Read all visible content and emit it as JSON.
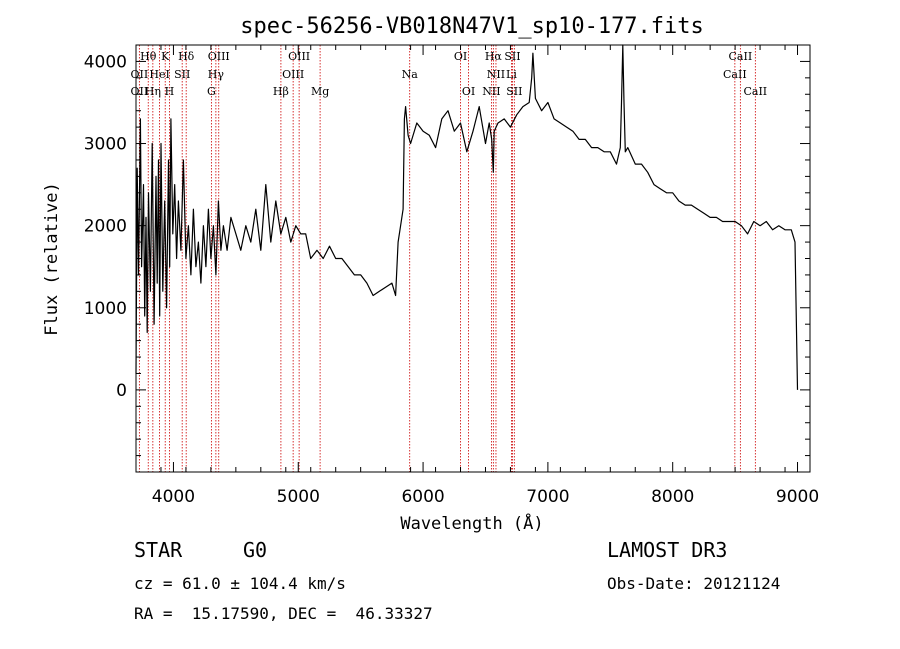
{
  "chart_data": {
    "type": "line",
    "title": "spec-56256-VB018N47V1_sp10-177.fits",
    "xlabel": "Wavelength (Å)",
    "ylabel": "Flux (relative)",
    "xlim": [
      3700,
      9100
    ],
    "ylim": [
      -1000,
      4200
    ],
    "x_ticks": [
      4000,
      5000,
      6000,
      7000,
      8000,
      9000
    ],
    "y_ticks": [
      0,
      1000,
      2000,
      3000,
      4000
    ],
    "series": [
      {
        "name": "flux",
        "x": [
          3700,
          3710,
          3720,
          3735,
          3745,
          3760,
          3770,
          3780,
          3790,
          3800,
          3815,
          3830,
          3845,
          3860,
          3870,
          3880,
          3890,
          3900,
          3915,
          3930,
          3945,
          3960,
          3970,
          3980,
          3995,
          4010,
          4025,
          4040,
          4060,
          4080,
          4100,
          4120,
          4140,
          4160,
          4180,
          4200,
          4220,
          4240,
          4260,
          4280,
          4300,
          4320,
          4340,
          4360,
          4380,
          4400,
          4430,
          4460,
          4500,
          4540,
          4580,
          4620,
          4660,
          4700,
          4740,
          4780,
          4820,
          4860,
          4900,
          4940,
          4980,
          5020,
          5060,
          5100,
          5150,
          5200,
          5250,
          5300,
          5350,
          5400,
          5450,
          5500,
          5550,
          5600,
          5650,
          5700,
          5750,
          5780,
          5800,
          5820,
          5840,
          5850,
          5860,
          5880,
          5900,
          5950,
          6000,
          6050,
          6100,
          6150,
          6200,
          6250,
          6300,
          6350,
          6400,
          6450,
          6500,
          6530,
          6550,
          6563,
          6570,
          6600,
          6650,
          6700,
          6750,
          6800,
          6850,
          6870,
          6880,
          6900,
          6950,
          7000,
          7050,
          7100,
          7150,
          7200,
          7250,
          7300,
          7350,
          7400,
          7450,
          7500,
          7550,
          7580,
          7590,
          7600,
          7610,
          7620,
          7640,
          7700,
          7750,
          7800,
          7850,
          7900,
          7950,
          8000,
          8050,
          8100,
          8150,
          8200,
          8250,
          8300,
          8350,
          8400,
          8450,
          8500,
          8550,
          8600,
          8650,
          8700,
          8750,
          8800,
          8850,
          8900,
          8950,
          8980,
          9000
        ],
        "values": [
          200,
          2700,
          1400,
          3300,
          1500,
          2500,
          900,
          2100,
          700,
          2400,
          1200,
          3000,
          800,
          2600,
          1300,
          2800,
          900,
          3000,
          1200,
          2300,
          1000,
          2800,
          1500,
          3300,
          1900,
          2500,
          1600,
          2300,
          1700,
          2800,
          1600,
          2000,
          1400,
          2200,
          1500,
          1800,
          1300,
          2000,
          1500,
          2200,
          1600,
          2000,
          1400,
          2300,
          1700,
          2000,
          1700,
          2100,
          1900,
          1700,
          2000,
          1800,
          2200,
          1700,
          2500,
          1800,
          2300,
          1900,
          2100,
          1800,
          2000,
          1900,
          1900,
          1600,
          1700,
          1600,
          1750,
          1600,
          1600,
          1500,
          1400,
          1400,
          1300,
          1150,
          1200,
          1250,
          1300,
          1150,
          1800,
          2000,
          2200,
          3300,
          3450,
          3100,
          3000,
          3250,
          3150,
          3100,
          2950,
          3300,
          3400,
          3150,
          3250,
          2900,
          3150,
          3450,
          3000,
          3250,
          3050,
          2650,
          3150,
          3250,
          3300,
          3200,
          3350,
          3450,
          3500,
          3800,
          4100,
          3550,
          3400,
          3500,
          3300,
          3250,
          3200,
          3150,
          3050,
          3050,
          2950,
          2950,
          2900,
          2900,
          2750,
          2950,
          3500,
          4200,
          3500,
          2900,
          2950,
          2750,
          2750,
          2650,
          2500,
          2450,
          2400,
          2400,
          2300,
          2250,
          2250,
          2200,
          2150,
          2100,
          2100,
          2050,
          2050,
          2050,
          2000,
          1900,
          2050,
          2000,
          2050,
          1950,
          2000,
          1950,
          1950,
          1800,
          0
        ]
      }
    ],
    "spectral_lines": [
      {
        "label": "Hθ",
        "x": 3798,
        "row": 0
      },
      {
        "label": "K",
        "x": 3934,
        "row": 0
      },
      {
        "label": "Hδ",
        "x": 4102,
        "row": 0
      },
      {
        "label": "OIII",
        "x": 4363,
        "row": 0
      },
      {
        "label": "OIII",
        "x": 5007,
        "row": 0
      },
      {
        "label": "OI",
        "x": 6300,
        "row": 0
      },
      {
        "label": "Hα",
        "x": 6563,
        "row": 0
      },
      {
        "label": "SII",
        "x": 6716,
        "row": 0
      },
      {
        "label": "CaII",
        "x": 8542,
        "row": 0
      },
      {
        "label": "OII",
        "x": 3727,
        "row": 1
      },
      {
        "label": "HeI",
        "x": 3889,
        "row": 1
      },
      {
        "label": "SII",
        "x": 4070,
        "row": 1
      },
      {
        "label": "Hγ",
        "x": 4340,
        "row": 1
      },
      {
        "label": "OIII",
        "x": 4959,
        "row": 1
      },
      {
        "label": "Na",
        "x": 5893,
        "row": 1
      },
      {
        "label": "NII",
        "x": 6584,
        "row": 1
      },
      {
        "label": "Li",
        "x": 6708,
        "row": 1
      },
      {
        "label": "CaII",
        "x": 8498,
        "row": 1
      },
      {
        "label": "OII",
        "x": 3727,
        "row": 2
      },
      {
        "label": "Hη",
        "x": 3835,
        "row": 2
      },
      {
        "label": "H",
        "x": 3968,
        "row": 2
      },
      {
        "label": "G",
        "x": 4304,
        "row": 2
      },
      {
        "label": "Hβ",
        "x": 4861,
        "row": 2
      },
      {
        "label": "Mg",
        "x": 5175,
        "row": 2
      },
      {
        "label": "OI",
        "x": 6364,
        "row": 2
      },
      {
        "label": "NII",
        "x": 6548,
        "row": 2
      },
      {
        "label": "SII",
        "x": 6731,
        "row": 2
      },
      {
        "label": "CaII",
        "x": 8662,
        "row": 2
      }
    ]
  },
  "info": {
    "class": "STAR",
    "subclass": "G0",
    "survey": "LAMOST DR3",
    "cz": "cz = 61.0 ± 104.4 km/s",
    "obs_date": "Obs-Date: 20121124",
    "coords": "RA =  15.17590, DEC =  46.33327"
  },
  "colors": {
    "line_marker": "#cc0000",
    "ink": "#000000"
  }
}
